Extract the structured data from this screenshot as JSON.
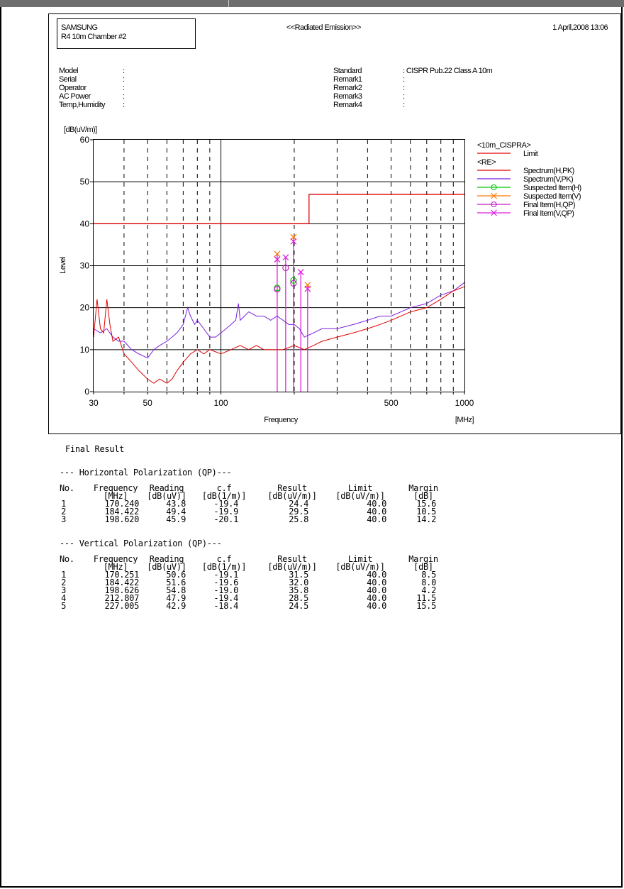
{
  "header": {
    "company": "SAMSUNG",
    "chamber": "R4 10m Chamber #2",
    "test_name": "<<Radiated Emission>>",
    "datetime": "1 April,2008 13:06"
  },
  "info_left": [
    {
      "label": "Model",
      "value": ":"
    },
    {
      "label": "Serial",
      "value": ":"
    },
    {
      "label": "Operator",
      "value": ":"
    },
    {
      "label": "AC Power",
      "value": ":"
    },
    {
      "label": "Temp,Humidity",
      "value": ":"
    }
  ],
  "info_right": [
    {
      "label": "Standard",
      "value": ": CISPR Pub.22 Class A 10m"
    },
    {
      "label": "Remark1",
      "value": ":"
    },
    {
      "label": "Remark2",
      "value": ":"
    },
    {
      "label": "Remark3",
      "value": ":"
    },
    {
      "label": "Remark4",
      "value": ":"
    }
  ],
  "colors": {
    "limit": "#e00000",
    "spectrum_h": "#e00000",
    "spectrum_v": "#7b1fe0",
    "suspect_h": "#00c800",
    "suspect_v": "#ff7a00",
    "final_h": "#c020c0",
    "final_v": "#e020e0",
    "grid": "#000000"
  },
  "chart_data": {
    "type": "line",
    "xlabel": "Frequency",
    "x_unit": "[MHz]",
    "ylabel": "Level",
    "y_unit": "[dB(uV/m)]",
    "x_scale": "log",
    "xlim": [
      30,
      1000
    ],
    "ylim": [
      0,
      60
    ],
    "x_ticks": [
      30,
      50,
      100,
      500,
      1000
    ],
    "y_ticks": [
      0,
      10,
      20,
      30,
      40,
      50,
      60
    ],
    "grid": true,
    "legend_placement": "right",
    "legend_groups": [
      {
        "title": "<10m_CISPRA>",
        "entries": [
          {
            "name": "Limit",
            "color": "#e00000",
            "marker": "none"
          }
        ]
      },
      {
        "title": "<RE>",
        "entries": [
          {
            "name": "Spectrum(H,PK)",
            "color": "#e00000",
            "marker": "none"
          },
          {
            "name": "Spectrum(V,PK)",
            "color": "#7b1fe0",
            "marker": "none"
          },
          {
            "name": "Suspected Item(H)",
            "color": "#00c800",
            "marker": "circle"
          },
          {
            "name": "Suspected Item(V)",
            "color": "#ff7a00",
            "marker": "x"
          },
          {
            "name": "Final Item(H,QP)",
            "color": "#c020c0",
            "marker": "circle"
          },
          {
            "name": "Final Item(V,QP)",
            "color": "#e020e0",
            "marker": "x"
          }
        ]
      }
    ],
    "limit": {
      "name": "Limit",
      "x": [
        30,
        230,
        230,
        1000
      ],
      "y": [
        40,
        40,
        47,
        47
      ]
    },
    "series": [
      {
        "name": "Spectrum(H,PK)",
        "x": [
          30,
          31,
          32,
          33,
          34,
          35,
          36,
          38,
          40,
          43,
          46,
          50,
          53,
          56,
          60,
          63,
          66,
          70,
          75,
          80,
          85,
          90,
          100,
          110,
          120,
          130,
          140,
          150,
          160,
          170,
          180,
          200,
          220,
          240,
          260,
          300,
          350,
          400,
          450,
          500,
          600,
          700,
          800,
          900,
          1000
        ],
        "y": [
          13,
          22,
          15,
          14,
          22,
          16,
          12,
          13,
          9,
          7,
          5,
          3,
          2,
          3,
          2,
          3,
          5,
          7,
          9,
          10,
          9,
          10,
          9,
          10,
          11,
          10,
          11,
          10,
          10,
          10,
          10,
          11,
          10,
          11,
          12,
          13,
          14,
          15,
          16,
          17,
          19,
          20,
          22,
          24,
          25
        ]
      },
      {
        "name": "Spectrum(V,PK)",
        "x": [
          30,
          32,
          34,
          36,
          38,
          40,
          43,
          46,
          50,
          53,
          56,
          60,
          63,
          66,
          70,
          73,
          75,
          78,
          80,
          85,
          90,
          95,
          100,
          105,
          110,
          115,
          118,
          120,
          125,
          130,
          140,
          150,
          160,
          170,
          180,
          190,
          200,
          210,
          220,
          240,
          260,
          300,
          350,
          400,
          450,
          500,
          600,
          700,
          800,
          900,
          1000
        ],
        "y": [
          15,
          14,
          15,
          13,
          12,
          12,
          10,
          9,
          8,
          10,
          11,
          12,
          13,
          14,
          16,
          20,
          18,
          16,
          17,
          15,
          13,
          13,
          14,
          15,
          16,
          17,
          21,
          17,
          18,
          19,
          18,
          18,
          17,
          18,
          17,
          16,
          16,
          15,
          13,
          14,
          15,
          15,
          16,
          17,
          18,
          18,
          20,
          21,
          23,
          24,
          26
        ]
      }
    ],
    "suspected_h": {
      "x": [
        170.24,
        198.62
      ],
      "y": [
        24.7,
        26.5
      ]
    },
    "suspected_v": {
      "x": [
        170.25,
        198.63,
        227.0
      ],
      "y": [
        32.8,
        36.8,
        25.4
      ]
    },
    "final_h": {
      "x": [
        170.24,
        184.422,
        198.62
      ],
      "y": [
        24.4,
        29.5,
        25.8
      ]
    },
    "final_v": {
      "x": [
        170.251,
        184.422,
        198.626,
        212.807,
        227.005
      ],
      "y": [
        31.5,
        32.0,
        35.8,
        28.5,
        24.5
      ]
    },
    "spike_lines": {
      "x": [
        170.24,
        184.42,
        198.62,
        212.8,
        227.0
      ],
      "y": [
        32.8,
        32.0,
        36.8,
        28.5,
        25.4
      ]
    }
  },
  "results": {
    "title": "Final Result",
    "horizontal": {
      "header": "--- Horizontal Polarization (QP)---",
      "columns": [
        "No.",
        "Frequency",
        "Reading",
        "c.f",
        "Result",
        "Limit",
        "Margin"
      ],
      "units": [
        "",
        "[MHz]",
        "[dB(uV)]",
        "[dB(1/m)]",
        "[dB(uV/m)]",
        "[dB(uV/m)]",
        "[dB]"
      ],
      "rows": [
        [
          "1",
          "170.240",
          "43.8",
          "-19.4",
          "24.4",
          "40.0",
          "15.6"
        ],
        [
          "2",
          "184.422",
          "49.4",
          "-19.9",
          "29.5",
          "40.0",
          "10.5"
        ],
        [
          "3",
          "198.620",
          "45.9",
          "-20.1",
          "25.8",
          "40.0",
          "14.2"
        ]
      ]
    },
    "vertical": {
      "header": "--- Vertical Polarization (QP)---",
      "columns": [
        "No.",
        "Frequency",
        "Reading",
        "c.f",
        "Result",
        "Limit",
        "Margin"
      ],
      "units": [
        "",
        "[MHz]",
        "[dB(uV)]",
        "[dB(1/m)]",
        "[dB(uV/m)]",
        "[dB(uV/m)]",
        "[dB]"
      ],
      "rows": [
        [
          "1",
          "170.251",
          "50.6",
          "-19.1",
          "31.5",
          "40.0",
          "8.5"
        ],
        [
          "2",
          "184.422",
          "51.6",
          "-19.6",
          "32.0",
          "40.0",
          "8.0"
        ],
        [
          "3",
          "198.626",
          "54.8",
          "-19.0",
          "35.8",
          "40.0",
          "4.2"
        ],
        [
          "4",
          "212.807",
          "47.9",
          "-19.4",
          "28.5",
          "40.0",
          "11.5"
        ],
        [
          "5",
          "227.005",
          "42.9",
          "-18.4",
          "24.5",
          "40.0",
          "15.5"
        ]
      ]
    }
  }
}
